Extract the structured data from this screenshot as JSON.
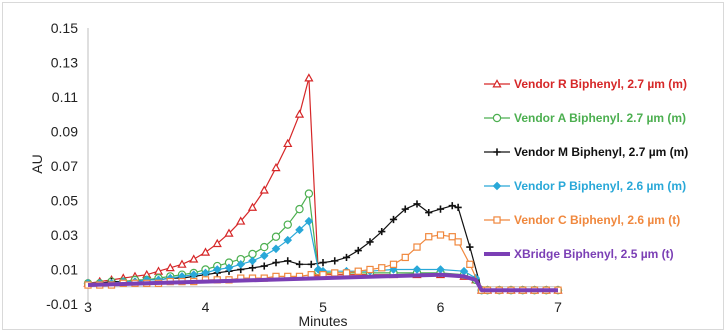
{
  "chart_data": {
    "type": "line",
    "title": "",
    "xlabel": "Minutes",
    "ylabel": "AU",
    "xlim": [
      3,
      7
    ],
    "ylim": [
      -0.01,
      0.15
    ],
    "xticks": [
      "3",
      "4",
      "5",
      "6",
      "7"
    ],
    "yticks": [
      "0.15",
      "0.13",
      "0.11",
      "0.09",
      "0.07",
      "0.05",
      "0.03",
      "0.01",
      "-0.01"
    ],
    "grid": false,
    "legend_position": "right",
    "series": [
      {
        "name": "Vendor R Biphenyl, 2.7 µm (m)",
        "color": "#d62728",
        "marker": "triangle",
        "x": [
          3.0,
          3.1,
          3.2,
          3.3,
          3.4,
          3.5,
          3.6,
          3.7,
          3.8,
          3.9,
          4.0,
          4.1,
          4.2,
          4.3,
          4.4,
          4.5,
          4.6,
          4.7,
          4.8,
          4.88,
          4.96,
          5.0,
          5.2,
          5.4,
          5.6,
          5.8,
          6.0,
          6.2,
          6.3,
          6.35,
          6.4,
          6.5,
          6.6,
          6.7,
          6.8,
          6.9,
          7.0
        ],
        "y": [
          0.002,
          0.003,
          0.004,
          0.005,
          0.006,
          0.007,
          0.009,
          0.011,
          0.013,
          0.016,
          0.02,
          0.025,
          0.031,
          0.038,
          0.046,
          0.056,
          0.069,
          0.083,
          0.1,
          0.121,
          0.008,
          0.007,
          0.007,
          0.007,
          0.007,
          0.007,
          0.007,
          0.006,
          0.004,
          -0.002,
          -0.002,
          -0.002,
          -0.002,
          -0.002,
          -0.002,
          -0.002,
          -0.002
        ]
      },
      {
        "name": "Vendor A Biphenyl. 2.7 µm (m)",
        "color": "#4caf50",
        "marker": "circle",
        "x": [
          3.0,
          3.1,
          3.2,
          3.3,
          3.4,
          3.5,
          3.6,
          3.7,
          3.8,
          3.9,
          4.0,
          4.1,
          4.2,
          4.3,
          4.4,
          4.5,
          4.6,
          4.7,
          4.8,
          4.88,
          4.96,
          5.0,
          5.2,
          5.4,
          5.6,
          5.8,
          6.0,
          6.2,
          6.3,
          6.35,
          6.4,
          6.5,
          6.6,
          6.7,
          6.8,
          6.9,
          7.0
        ],
        "y": [
          0.002,
          0.002,
          0.003,
          0.003,
          0.004,
          0.004,
          0.005,
          0.006,
          0.007,
          0.008,
          0.01,
          0.012,
          0.014,
          0.016,
          0.019,
          0.023,
          0.029,
          0.036,
          0.045,
          0.054,
          0.009,
          0.008,
          0.008,
          0.008,
          0.008,
          0.008,
          0.008,
          0.007,
          0.004,
          -0.002,
          -0.002,
          -0.002,
          -0.002,
          -0.002,
          -0.002,
          -0.002,
          -0.002
        ]
      },
      {
        "name": "Vendor M Biphenyl, 2.7 µm (m)",
        "color": "#111111",
        "marker": "plus",
        "x": [
          3.0,
          3.1,
          3.2,
          3.3,
          3.4,
          3.5,
          3.6,
          3.7,
          3.8,
          3.9,
          4.0,
          4.1,
          4.2,
          4.3,
          4.4,
          4.5,
          4.6,
          4.7,
          4.8,
          4.9,
          5.0,
          5.1,
          5.2,
          5.3,
          5.4,
          5.5,
          5.6,
          5.7,
          5.8,
          5.9,
          6.0,
          6.1,
          6.15,
          6.25,
          6.35,
          6.4,
          6.5,
          6.6,
          6.7,
          6.8,
          6.9,
          7.0
        ],
        "y": [
          0.002,
          0.002,
          0.003,
          0.003,
          0.003,
          0.004,
          0.004,
          0.005,
          0.005,
          0.006,
          0.007,
          0.008,
          0.009,
          0.01,
          0.011,
          0.012,
          0.014,
          0.015,
          0.013,
          0.013,
          0.014,
          0.015,
          0.017,
          0.021,
          0.026,
          0.032,
          0.039,
          0.045,
          0.048,
          0.043,
          0.045,
          0.047,
          0.046,
          0.023,
          -0.002,
          -0.002,
          -0.002,
          -0.002,
          -0.002,
          -0.002,
          -0.002,
          -0.002
        ]
      },
      {
        "name": "Vendor P Biphenyl, 2.6 µm (m)",
        "color": "#29a8d8",
        "marker": "diamond",
        "x": [
          3.0,
          3.1,
          3.2,
          3.3,
          3.4,
          3.5,
          3.6,
          3.7,
          3.8,
          3.9,
          4.0,
          4.1,
          4.2,
          4.3,
          4.4,
          4.5,
          4.6,
          4.7,
          4.8,
          4.88,
          4.96,
          5.0,
          5.2,
          5.4,
          5.6,
          5.8,
          6.0,
          6.2,
          6.3,
          6.35,
          6.4,
          6.5,
          6.6,
          6.7,
          6.8,
          6.9,
          7.0
        ],
        "y": [
          0.002,
          0.002,
          0.002,
          0.003,
          0.003,
          0.004,
          0.004,
          0.005,
          0.006,
          0.007,
          0.008,
          0.01,
          0.011,
          0.013,
          0.015,
          0.018,
          0.022,
          0.027,
          0.033,
          0.038,
          0.01,
          0.009,
          0.009,
          0.009,
          0.01,
          0.01,
          0.01,
          0.009,
          0.005,
          -0.002,
          -0.002,
          -0.002,
          -0.002,
          -0.002,
          -0.002,
          -0.002,
          -0.002
        ]
      },
      {
        "name": "Vendor C Biphenyl, 2.6 µm (t)",
        "color": "#f0883e",
        "marker": "square",
        "x": [
          3.0,
          3.1,
          3.2,
          3.3,
          3.4,
          3.5,
          3.6,
          3.7,
          3.8,
          3.9,
          4.0,
          4.1,
          4.2,
          4.3,
          4.4,
          4.5,
          4.6,
          4.7,
          4.8,
          4.9,
          5.0,
          5.1,
          5.2,
          5.3,
          5.4,
          5.5,
          5.6,
          5.7,
          5.8,
          5.9,
          6.0,
          6.1,
          6.15,
          6.25,
          6.35,
          6.4,
          6.5,
          6.6,
          6.7,
          6.8,
          6.9,
          7.0
        ],
        "y": [
          0.001,
          0.001,
          0.001,
          0.002,
          0.002,
          0.002,
          0.002,
          0.003,
          0.003,
          0.003,
          0.004,
          0.004,
          0.004,
          0.005,
          0.005,
          0.005,
          0.006,
          0.006,
          0.006,
          0.007,
          0.007,
          0.008,
          0.008,
          0.009,
          0.01,
          0.011,
          0.013,
          0.017,
          0.023,
          0.029,
          0.03,
          0.029,
          0.026,
          0.013,
          -0.002,
          -0.002,
          -0.002,
          -0.002,
          -0.002,
          -0.002,
          -0.002,
          -0.002
        ]
      },
      {
        "name": "XBridge Biphenyl, 2.5 µm (t)",
        "color": "#7b3fb5",
        "marker": "none",
        "x": [
          3.0,
          3.5,
          4.0,
          4.5,
          5.0,
          5.5,
          6.0,
          6.2,
          6.3,
          6.35,
          6.5,
          7.0
        ],
        "y": [
          0.001,
          0.002,
          0.003,
          0.004,
          0.005,
          0.006,
          0.007,
          0.006,
          0.004,
          -0.002,
          -0.002,
          -0.002
        ]
      }
    ]
  }
}
